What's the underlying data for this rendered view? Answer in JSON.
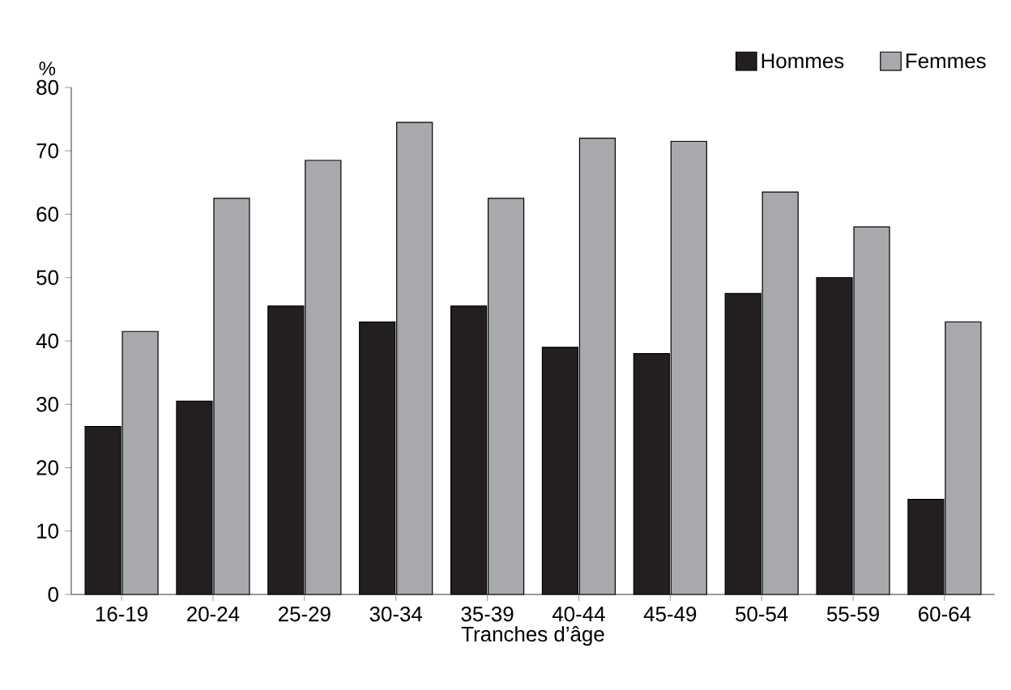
{
  "chart_data": {
    "type": "bar",
    "ylabel": "%",
    "xlabel": "Tranches d’âge",
    "categories": [
      "16-19",
      "20-24",
      "25-29",
      "30-34",
      "35-39",
      "40-44",
      "45-49",
      "50-54",
      "55-59",
      "60-64"
    ],
    "series": [
      {
        "name": "Hommes",
        "color": "#231f20",
        "values": [
          26.5,
          30.5,
          45.5,
          43,
          45.5,
          39,
          38,
          47.5,
          50,
          15
        ]
      },
      {
        "name": "Femmes",
        "color": "#a7a9ac",
        "values": [
          41.5,
          62.5,
          68.5,
          74.5,
          62.5,
          72,
          71.5,
          63.5,
          58,
          43
        ]
      }
    ],
    "ylim": [
      0,
      80
    ],
    "yticks": [
      0,
      10,
      20,
      30,
      40,
      50,
      60,
      70,
      80
    ],
    "grid": false,
    "legend": "top right"
  }
}
